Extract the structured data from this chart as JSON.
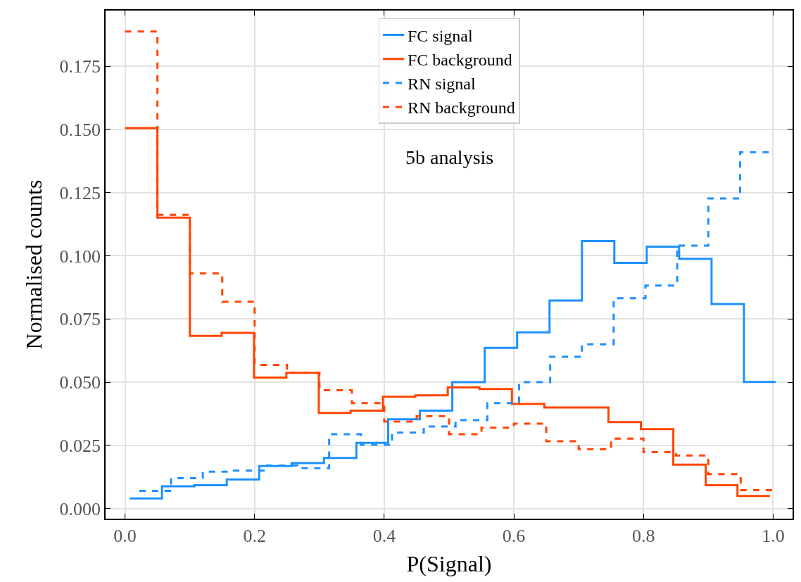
{
  "chart_data": {
    "type": "step",
    "xlabel": "P(Signal)",
    "ylabel": "Normalised counts",
    "annotations": [
      "5b analysis"
    ],
    "xlim": [
      -0.03,
      1.03
    ],
    "ylim": [
      -0.004,
      0.197
    ],
    "xticks": [
      {
        "value": 0,
        "label": "0.0"
      },
      {
        "value": 0.2,
        "label": "0.2"
      },
      {
        "value": 0.4,
        "label": "0.4"
      },
      {
        "value": 0.6,
        "label": "0.6"
      },
      {
        "value": 0.8,
        "label": "0.8"
      },
      {
        "value": 1,
        "label": "1.0"
      }
    ],
    "yticks": [
      {
        "value": 0,
        "label": "0.000"
      },
      {
        "value": 0.025,
        "label": "0.025"
      },
      {
        "value": 0.05,
        "label": "0.050"
      },
      {
        "value": 0.075,
        "label": "0.075"
      },
      {
        "value": 0.1,
        "label": "0.100"
      },
      {
        "value": 0.125,
        "label": "0.125"
      },
      {
        "value": 0.15,
        "label": "0.150"
      },
      {
        "value": 0.175,
        "label": "0.175"
      }
    ],
    "grid": true,
    "legend": "top",
    "series": [
      {
        "name": "FC signal",
        "color": "#1e90ff",
        "line_style": "solid",
        "x": [
          0.007,
          0.057,
          0.107,
          0.157,
          0.207,
          0.257,
          0.307,
          0.357,
          0.406,
          0.455,
          0.505,
          0.555,
          0.605,
          0.655,
          0.705,
          0.755,
          0.805,
          0.855,
          0.905,
          0.955,
          1.004
        ],
        "values": [
          0.004,
          0.0088,
          0.0092,
          0.0115,
          0.0168,
          0.018,
          0.02,
          0.026,
          0.0353,
          0.0387,
          0.05,
          0.0636,
          0.0697,
          0.0823,
          0.1058,
          0.0972,
          0.1036,
          0.0988,
          0.0809,
          0.0501,
          0.0501
        ]
      },
      {
        "name": "FC background",
        "color": "#ff4500",
        "line_style": "solid",
        "x": [
          0.0,
          0.05,
          0.1,
          0.149,
          0.199,
          0.249,
          0.299,
          0.348,
          0.398,
          0.448,
          0.498,
          0.547,
          0.597,
          0.647,
          0.697,
          0.746,
          0.796,
          0.846,
          0.896,
          0.945,
          0.995
        ],
        "values": [
          0.1505,
          0.1151,
          0.0683,
          0.0695,
          0.0518,
          0.0537,
          0.0378,
          0.0387,
          0.0442,
          0.0448,
          0.0479,
          0.0473,
          0.0414,
          0.04,
          0.04,
          0.0342,
          0.0314,
          0.0174,
          0.0092,
          0.005,
          0.005
        ]
      },
      {
        "name": "RN signal",
        "color": "#1e90ff",
        "line_style": "dashed",
        "x": [
          0.022,
          0.071,
          0.12,
          0.168,
          0.217,
          0.266,
          0.315,
          0.364,
          0.412,
          0.461,
          0.51,
          0.559,
          0.608,
          0.656,
          0.705,
          0.754,
          0.803,
          0.852,
          0.9,
          0.949,
          0.998
        ],
        "values": [
          0.007,
          0.012,
          0.0146,
          0.015,
          0.017,
          0.016,
          0.0294,
          0.0252,
          0.03,
          0.0325,
          0.035,
          0.0417,
          0.05,
          0.06,
          0.065,
          0.0832,
          0.0882,
          0.104,
          0.1227,
          0.141,
          0.141
        ]
      },
      {
        "name": "RN background",
        "color": "#ff4500",
        "line_style": "dashed",
        "x": [
          0.0,
          0.05,
          0.1,
          0.15,
          0.2,
          0.25,
          0.3,
          0.35,
          0.4,
          0.45,
          0.5,
          0.55,
          0.6,
          0.65,
          0.7,
          0.75,
          0.8,
          0.85,
          0.9,
          0.95,
          1.0
        ],
        "values": [
          0.1887,
          0.1162,
          0.093,
          0.0818,
          0.0568,
          0.0538,
          0.0468,
          0.0417,
          0.0344,
          0.0366,
          0.0294,
          0.032,
          0.0336,
          0.0266,
          0.0235,
          0.0277,
          0.0223,
          0.021,
          0.0136,
          0.0073,
          0.0073
        ]
      }
    ]
  }
}
